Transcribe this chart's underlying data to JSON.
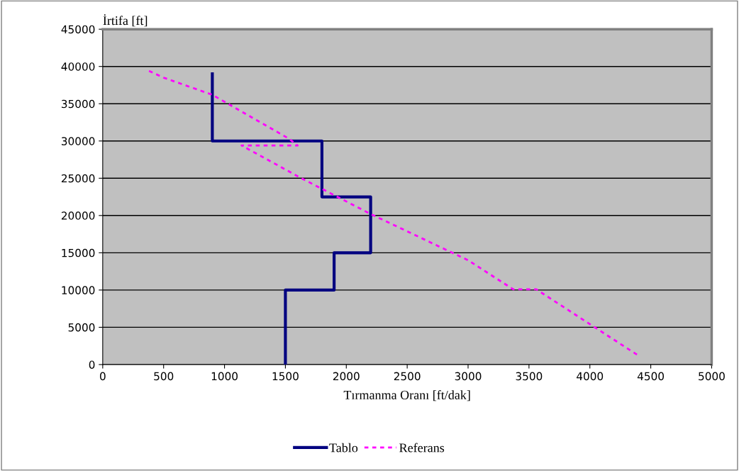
{
  "chart_data": {
    "type": "line",
    "xlabel": "Tırmanma Oranı [ft/dak]",
    "ylabel": "İrtifa [ft]",
    "xlim": [
      0,
      5000
    ],
    "xticks": [
      0,
      500,
      1000,
      1500,
      2000,
      2500,
      3000,
      3500,
      4000,
      4500,
      5000
    ],
    "ylim": [
      0,
      45000
    ],
    "yticks": [
      0,
      5000,
      10000,
      15000,
      20000,
      25000,
      30000,
      35000,
      40000,
      45000
    ],
    "grid": "y",
    "legend": "bottom",
    "series": [
      {
        "name": "Tablo",
        "color": "#000080",
        "line_style": "solid",
        "x": [
          1500,
          1500,
          1900,
          1900,
          2200,
          2200,
          1800,
          1800,
          900,
          900
        ],
        "values": [
          0,
          10000,
          10000,
          15000,
          15000,
          22500,
          22500,
          30000,
          30000,
          39000
        ]
      },
      {
        "name": "Referans",
        "color": "#ff00ff",
        "line_style": "dashed",
        "x": [
          380,
          500,
          900,
          1530,
          1600,
          1140,
          1620,
          2200,
          3000,
          3370,
          3560,
          4040,
          4390
        ],
        "values": [
          39400,
          38500,
          36200,
          30300,
          29400,
          29400,
          25100,
          20200,
          14000,
          10100,
          10100,
          5000,
          1300
        ]
      }
    ]
  }
}
